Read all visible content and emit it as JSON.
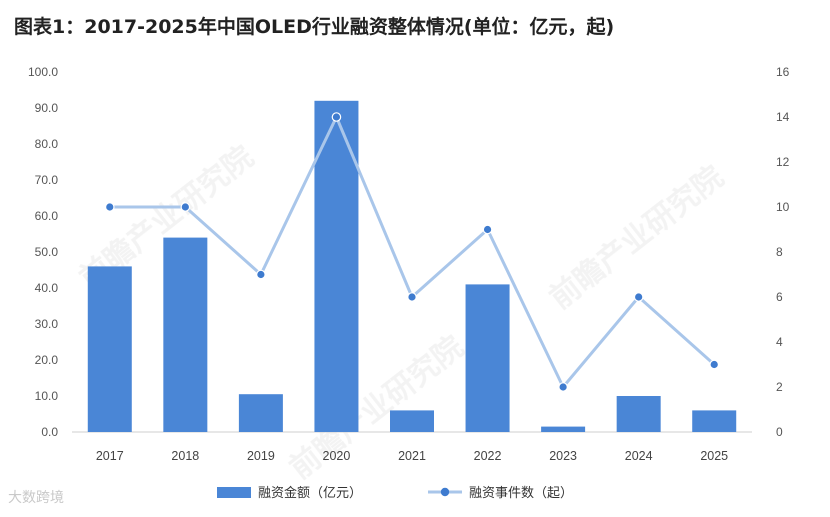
{
  "title": "图表1：2017-2025年中国OLED行业融资整体情况(单位：亿元，起)",
  "chart_data": {
    "type": "bar",
    "categories": [
      "2017",
      "2018",
      "2019",
      "2020",
      "2021",
      "2022",
      "2023",
      "2024",
      "2025"
    ],
    "series": [
      {
        "name": "融资金额（亿元）",
        "type": "bar",
        "axis": "left",
        "values": [
          46.0,
          54.0,
          10.5,
          92.0,
          6.0,
          41.0,
          1.5,
          10.0,
          6.0
        ],
        "color": "#4A86D6"
      },
      {
        "name": "融资事件数（起）",
        "type": "line",
        "axis": "right",
        "values": [
          10,
          10,
          7,
          14,
          6,
          9,
          2,
          6,
          3
        ],
        "color": "#A9C6EA",
        "marker_color": "#3E7BCF"
      }
    ],
    "y_left": {
      "range": [
        0,
        100
      ],
      "ticks": [
        "0.0",
        "10.0",
        "20.0",
        "30.0",
        "40.0",
        "50.0",
        "60.0",
        "70.0",
        "80.0",
        "90.0",
        "100.0"
      ]
    },
    "y_right": {
      "range": [
        0,
        16
      ],
      "ticks": [
        "0",
        "2",
        "4",
        "6",
        "8",
        "10",
        "12",
        "14",
        "16"
      ]
    },
    "grid": false,
    "legend_position": "bottom"
  },
  "watermark": "前瞻产业研究院",
  "footer": "大数跨境"
}
